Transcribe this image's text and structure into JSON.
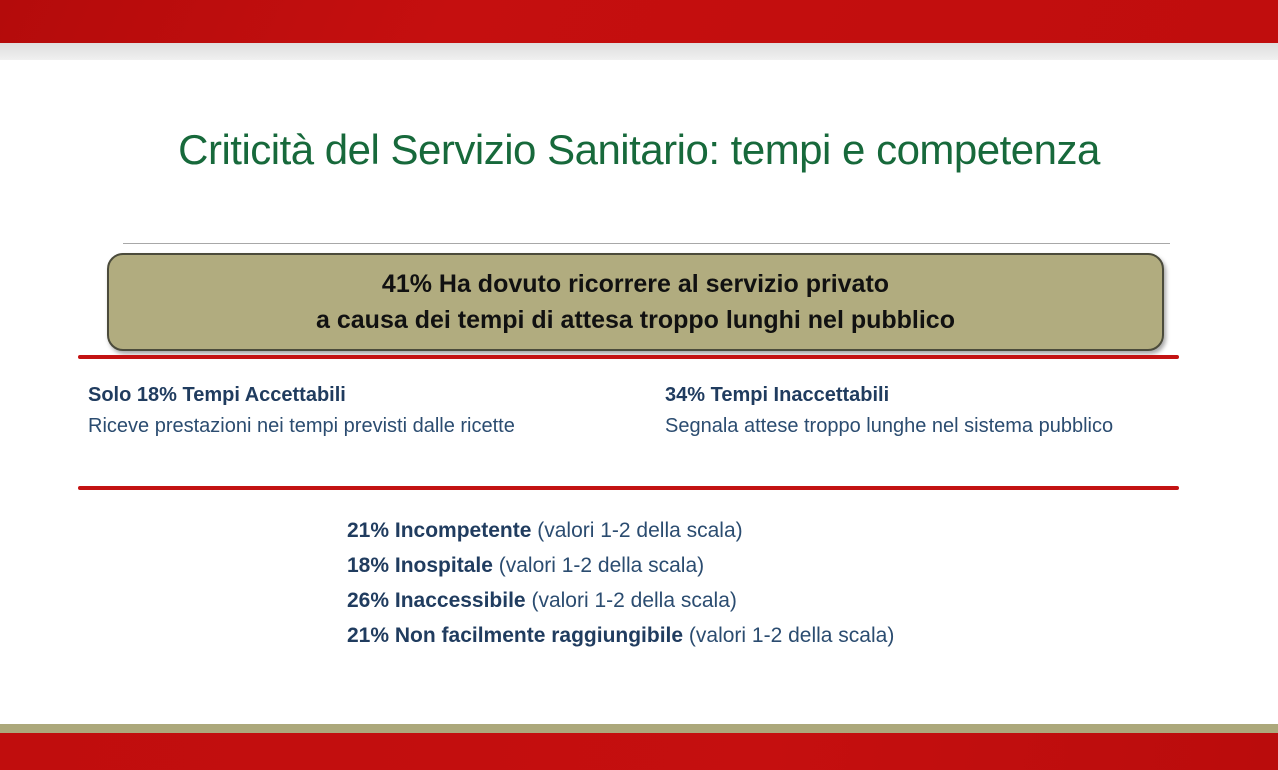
{
  "slide": {
    "title": "Criticità del Servizio Sanitario: tempi e competenza",
    "highlight_box": {
      "line1": "41% Ha dovuto ricorrere al servizio privato",
      "line2": "a causa dei tempi di attesa troppo lunghi nel pubblico"
    },
    "columns": [
      {
        "heading": "Solo 18% Tempi Accettabili",
        "body": "Riceve prestazioni nei tempi previsti dalle ricette"
      },
      {
        "heading": "34% Tempi Inaccettabili",
        "body": "Segnala attese troppo lunghe nel sistema pubblico"
      }
    ],
    "list": [
      {
        "bold": "21% Incompetente",
        "rest": " (valori 1-2 della scala)"
      },
      {
        "bold": "18% Inospitale",
        "rest": " (valori 1-2 della scala)"
      },
      {
        "bold": "26% Inaccessibile",
        "rest": " (valori 1-2 della scala)"
      },
      {
        "bold": "21% Non facilmente raggiungibile",
        "rest": " (valori 1-2 della scala)"
      }
    ],
    "colors": {
      "accent_red": "#C00D0D",
      "title_green": "#17693B",
      "box_tan": "#B1AC7F",
      "box_border": "#4B4B3B",
      "text_navy": "#203C5F",
      "stripe_tan": "#ACA87B"
    }
  }
}
